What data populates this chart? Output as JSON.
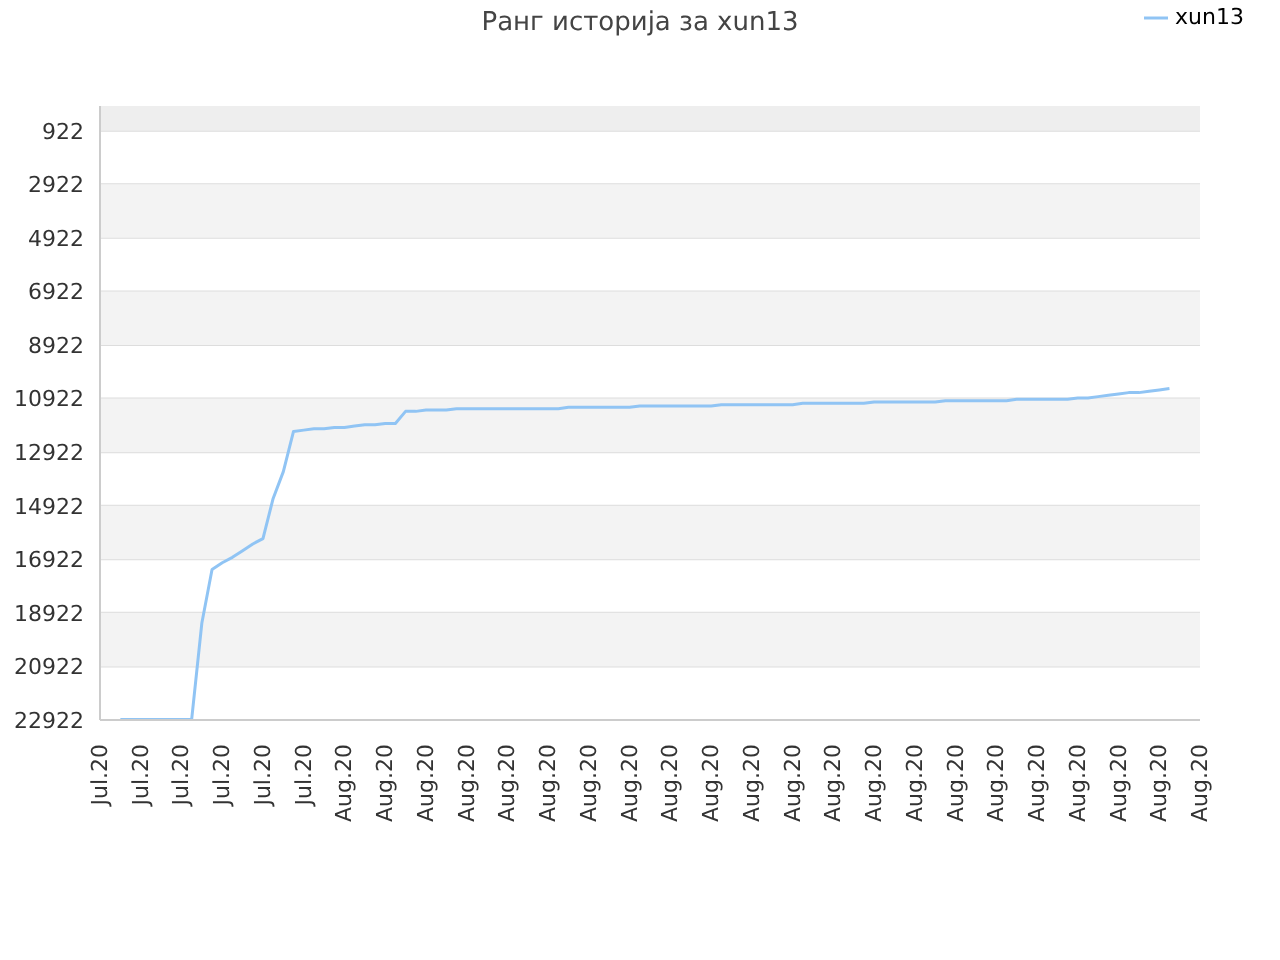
{
  "chart_data": {
    "type": "line",
    "title": "Ранг историја за xun13",
    "categories": [
      "Jul.20",
      null,
      null,
      null,
      "Jul.20",
      null,
      null,
      null,
      "Jul.20",
      null,
      null,
      null,
      "Jul.20",
      null,
      null,
      null,
      "Jul.20",
      null,
      null,
      null,
      "Jul.20",
      null,
      null,
      null,
      "Aug.20",
      null,
      null,
      null,
      "Aug.20",
      null,
      null,
      null,
      "Aug.20",
      null,
      null,
      null,
      "Aug.20",
      null,
      null,
      null,
      "Aug.20",
      null,
      null,
      null,
      "Aug.20",
      null,
      null,
      null,
      "Aug.20",
      null,
      null,
      null,
      "Aug.20",
      null,
      null,
      null,
      "Aug.20",
      null,
      null,
      null,
      "Aug.20",
      null,
      null,
      null,
      "Aug.20",
      null,
      null,
      null,
      "Aug.20",
      null,
      null,
      null,
      "Aug.20",
      null,
      null,
      null,
      "Aug.20",
      null,
      null,
      null,
      "Aug.20",
      null,
      null,
      null,
      "Aug.20",
      null,
      null,
      null,
      "Aug.20",
      null,
      null,
      null,
      "Aug.20",
      null,
      null,
      null,
      "Aug.20",
      null,
      null,
      null,
      "Aug.20",
      null,
      null,
      null,
      "Aug.20",
      null,
      null,
      null,
      "Aug.20"
    ],
    "series": [
      {
        "name": "xun13",
        "color": "#90c4f4",
        "values": [
          null,
          null,
          22900,
          22900,
          22900,
          22900,
          22900,
          22900,
          22900,
          22900,
          19300,
          17300,
          17050,
          16850,
          16600,
          16350,
          16150,
          14650,
          13650,
          12150,
          12100,
          12050,
          12050,
          12000,
          12000,
          11950,
          11900,
          11900,
          11850,
          11850,
          11400,
          11400,
          11350,
          11350,
          11350,
          11300,
          11300,
          11300,
          11300,
          11300,
          11300,
          11300,
          11300,
          11300,
          11300,
          11300,
          11250,
          11250,
          11250,
          11250,
          11250,
          11250,
          11250,
          11200,
          11200,
          11200,
          11200,
          11200,
          11200,
          11200,
          11200,
          11150,
          11150,
          11150,
          11150,
          11150,
          11150,
          11150,
          11150,
          11100,
          11100,
          11100,
          11100,
          11100,
          11100,
          11100,
          11050,
          11050,
          11050,
          11050,
          11050,
          11050,
          11050,
          11000,
          11000,
          11000,
          11000,
          11000,
          11000,
          11000,
          10950,
          10950,
          10950,
          10950,
          10950,
          10950,
          10900,
          10900,
          10850,
          10800,
          10750,
          10700,
          10700,
          10650,
          10600,
          10550,
          null,
          null,
          null
        ]
      }
    ],
    "ylim": [
      22922,
      0
    ],
    "yticks": [
      922,
      2922,
      4922,
      6922,
      8922,
      10922,
      12922,
      14922,
      16922,
      18922,
      20922,
      22922
    ],
    "bands": [
      {
        "axis": "y",
        "from": 0,
        "to": 922,
        "color": "#eeeeee"
      },
      {
        "axis": "y",
        "from": 2922,
        "to": 4922,
        "color": "#f3f3f3"
      },
      {
        "axis": "y",
        "from": 6922,
        "to": 8922,
        "color": "#f3f3f3"
      },
      {
        "axis": "y",
        "from": 10922,
        "to": 12922,
        "color": "#f3f3f3"
      },
      {
        "axis": "y",
        "from": 14922,
        "to": 16922,
        "color": "#f3f3f3"
      },
      {
        "axis": "y",
        "from": 18922,
        "to": 20922,
        "color": "#f3f3f3"
      }
    ],
    "grid": "y",
    "legend": "top right",
    "marker": "none",
    "line_style": "solid"
  }
}
